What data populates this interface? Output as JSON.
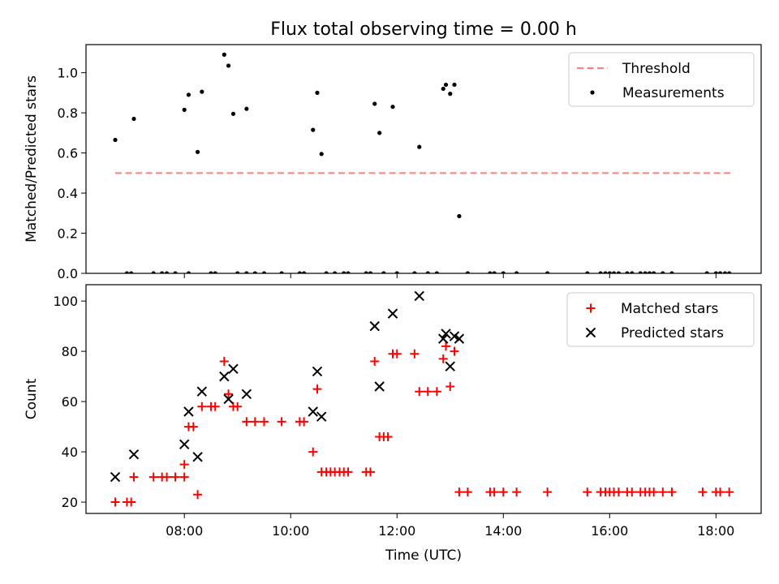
{
  "chart_data": {
    "title": "Flux total observing time = 0.00 h",
    "x_axis": {
      "label": "Time (UTC)",
      "unit": "hours UTC",
      "ticks": [
        8,
        10,
        12,
        14,
        16,
        18
      ],
      "tick_labels": [
        "08:00",
        "10:00",
        "12:00",
        "14:00",
        "16:00",
        "18:00"
      ],
      "xlim": [
        6.15,
        18.85
      ]
    },
    "panels": [
      {
        "type": "scatter",
        "ylabel": "Matched/Predicted stars",
        "ylim": [
          0,
          1.14
        ],
        "yticks": [
          0.0,
          0.2,
          0.4,
          0.6,
          0.8,
          1.0
        ],
        "ytick_labels": [
          "0.0",
          "0.2",
          "0.4",
          "0.6",
          "0.8",
          "1.0"
        ],
        "legend_position": "top-right",
        "series": [
          {
            "name": "Threshold",
            "style": "dashed-line",
            "color": "#ff7f7f",
            "points": [
              [
                6.7,
                0.5
              ],
              [
                18.3,
                0.5
              ]
            ]
          },
          {
            "name": "Measurements",
            "style": "dot",
            "color": "#000000",
            "points": [
              [
                6.7,
                0.665
              ],
              [
                7.05,
                0.77
              ],
              [
                8.0,
                0.815
              ],
              [
                8.08,
                0.89
              ],
              [
                8.25,
                0.605
              ],
              [
                8.33,
                0.905
              ],
              [
                8.75,
                1.09
              ],
              [
                8.83,
                1.035
              ],
              [
                8.92,
                0.795
              ],
              [
                9.17,
                0.82
              ],
              [
                10.42,
                0.715
              ],
              [
                10.5,
                0.9
              ],
              [
                10.58,
                0.595
              ],
              [
                11.58,
                0.845
              ],
              [
                11.67,
                0.7
              ],
              [
                11.92,
                0.83
              ],
              [
                12.42,
                0.63
              ],
              [
                12.87,
                0.92
              ],
              [
                12.92,
                0.94
              ],
              [
                13.0,
                0.895
              ],
              [
                13.08,
                0.94
              ],
              [
                13.17,
                0.285
              ],
              [
                6.92,
                0
              ],
              [
                7.0,
                0
              ],
              [
                7.42,
                0
              ],
              [
                7.58,
                0
              ],
              [
                7.67,
                0
              ],
              [
                7.83,
                0
              ],
              [
                8.08,
                0
              ],
              [
                8.5,
                0
              ],
              [
                8.58,
                0
              ],
              [
                9.0,
                0
              ],
              [
                9.17,
                0
              ],
              [
                9.33,
                0
              ],
              [
                9.5,
                0
              ],
              [
                9.83,
                0
              ],
              [
                10.17,
                0
              ],
              [
                10.25,
                0
              ],
              [
                10.67,
                0
              ],
              [
                10.83,
                0
              ],
              [
                11.0,
                0
              ],
              [
                11.08,
                0
              ],
              [
                11.42,
                0
              ],
              [
                11.5,
                0
              ],
              [
                11.75,
                0
              ],
              [
                12.0,
                0
              ],
              [
                12.33,
                0
              ],
              [
                12.58,
                0
              ],
              [
                12.75,
                0
              ],
              [
                13.33,
                0
              ],
              [
                13.75,
                0
              ],
              [
                13.83,
                0
              ],
              [
                14.0,
                0
              ],
              [
                14.25,
                0
              ],
              [
                14.83,
                0
              ],
              [
                15.58,
                0
              ],
              [
                15.83,
                0
              ],
              [
                15.92,
                0
              ],
              [
                16.0,
                0
              ],
              [
                16.08,
                0
              ],
              [
                16.17,
                0
              ],
              [
                16.33,
                0
              ],
              [
                16.42,
                0
              ],
              [
                16.58,
                0
              ],
              [
                16.67,
                0
              ],
              [
                16.75,
                0
              ],
              [
                16.83,
                0
              ],
              [
                17.0,
                0
              ],
              [
                17.17,
                0
              ],
              [
                17.83,
                0
              ],
              [
                18.0,
                0
              ],
              [
                18.08,
                0
              ],
              [
                18.17,
                0
              ],
              [
                18.25,
                0
              ]
            ]
          }
        ]
      },
      {
        "type": "scatter",
        "ylabel": "Count",
        "ylim": [
          15.5,
          106.5
        ],
        "yticks": [
          20,
          40,
          60,
          80,
          100
        ],
        "ytick_labels": [
          "20",
          "40",
          "60",
          "80",
          "100"
        ],
        "legend_position": "top-right",
        "series": [
          {
            "name": "Matched stars",
            "style": "plus",
            "color": "#ff0000",
            "points": [
              [
                6.7,
                20
              ],
              [
                6.92,
                20
              ],
              [
                7.0,
                20
              ],
              [
                7.05,
                30
              ],
              [
                7.42,
                30
              ],
              [
                7.58,
                30
              ],
              [
                7.67,
                30
              ],
              [
                7.83,
                30
              ],
              [
                8.0,
                30
              ],
              [
                8.0,
                35
              ],
              [
                8.08,
                50
              ],
              [
                8.17,
                50
              ],
              [
                8.25,
                23
              ],
              [
                8.33,
                58
              ],
              [
                8.5,
                58
              ],
              [
                8.58,
                58
              ],
              [
                8.75,
                76
              ],
              [
                8.83,
                63
              ],
              [
                8.92,
                58
              ],
              [
                9.0,
                58
              ],
              [
                9.17,
                52
              ],
              [
                9.33,
                52
              ],
              [
                9.5,
                52
              ],
              [
                9.83,
                52
              ],
              [
                10.17,
                52
              ],
              [
                10.25,
                52
              ],
              [
                10.42,
                40
              ],
              [
                10.5,
                65
              ],
              [
                10.58,
                32
              ],
              [
                10.67,
                32
              ],
              [
                10.75,
                32
              ],
              [
                10.83,
                32
              ],
              [
                10.92,
                32
              ],
              [
                11.0,
                32
              ],
              [
                11.08,
                32
              ],
              [
                11.42,
                32
              ],
              [
                11.5,
                32
              ],
              [
                11.58,
                76
              ],
              [
                11.67,
                46
              ],
              [
                11.75,
                46
              ],
              [
                11.83,
                46
              ],
              [
                11.92,
                79
              ],
              [
                12.0,
                79
              ],
              [
                12.33,
                79
              ],
              [
                12.42,
                64
              ],
              [
                12.58,
                64
              ],
              [
                12.75,
                64
              ],
              [
                12.87,
                77
              ],
              [
                12.92,
                82
              ],
              [
                13.0,
                66
              ],
              [
                13.08,
                80
              ],
              [
                13.17,
                24
              ],
              [
                13.33,
                24
              ],
              [
                13.75,
                24
              ],
              [
                13.83,
                24
              ],
              [
                14.0,
                24
              ],
              [
                14.25,
                24
              ],
              [
                14.83,
                24
              ],
              [
                15.58,
                24
              ],
              [
                15.83,
                24
              ],
              [
                15.92,
                24
              ],
              [
                16.0,
                24
              ],
              [
                16.08,
                24
              ],
              [
                16.17,
                24
              ],
              [
                16.33,
                24
              ],
              [
                16.42,
                24
              ],
              [
                16.58,
                24
              ],
              [
                16.67,
                24
              ],
              [
                16.75,
                24
              ],
              [
                16.83,
                24
              ],
              [
                17.0,
                24
              ],
              [
                17.17,
                24
              ],
              [
                17.75,
                24
              ],
              [
                18.0,
                24
              ],
              [
                18.08,
                24
              ],
              [
                18.25,
                24
              ]
            ]
          },
          {
            "name": "Predicted stars",
            "style": "x",
            "color": "#000000",
            "points": [
              [
                6.7,
                30
              ],
              [
                7.05,
                39
              ],
              [
                8.0,
                43
              ],
              [
                8.08,
                56
              ],
              [
                8.25,
                38
              ],
              [
                8.33,
                64
              ],
              [
                8.75,
                70
              ],
              [
                8.83,
                61
              ],
              [
                8.92,
                73
              ],
              [
                9.17,
                63
              ],
              [
                10.42,
                56
              ],
              [
                10.5,
                72
              ],
              [
                10.58,
                54
              ],
              [
                11.58,
                90
              ],
              [
                11.67,
                66
              ],
              [
                11.92,
                95
              ],
              [
                12.42,
                102
              ],
              [
                12.87,
                85
              ],
              [
                12.92,
                87
              ],
              [
                13.0,
                74
              ],
              [
                13.08,
                86
              ],
              [
                13.17,
                85
              ]
            ]
          }
        ]
      }
    ]
  }
}
